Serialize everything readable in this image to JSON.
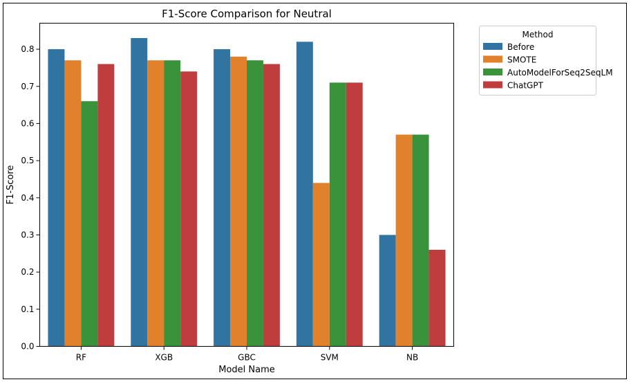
{
  "chart_data": {
    "type": "bar",
    "title": "F1-Score Comparison for Neutral",
    "xlabel": "Model Name",
    "ylabel": "F1-Score",
    "ylim": [
      0,
      0.87
    ],
    "yticks": [
      0.0,
      0.1,
      0.2,
      0.3,
      0.4,
      0.5,
      0.6,
      0.7,
      0.8
    ],
    "categories": [
      "RF",
      "XGB",
      "GBC",
      "SVM",
      "NB"
    ],
    "legend": {
      "title": "Method",
      "placement": "outside-right-top"
    },
    "series": [
      {
        "name": "Before",
        "color": "#3274a1",
        "values": [
          0.8,
          0.83,
          0.8,
          0.82,
          0.3
        ]
      },
      {
        "name": "SMOTE",
        "color": "#e1812c",
        "values": [
          0.77,
          0.77,
          0.78,
          0.44,
          0.57
        ]
      },
      {
        "name": "AutoModelForSeq2SeqLM",
        "color": "#3a923a",
        "values": [
          0.66,
          0.77,
          0.77,
          0.71,
          0.57
        ]
      },
      {
        "name": "ChatGPT",
        "color": "#c03d3e",
        "values": [
          0.76,
          0.74,
          0.76,
          0.71,
          0.26
        ]
      }
    ],
    "grid": false
  }
}
